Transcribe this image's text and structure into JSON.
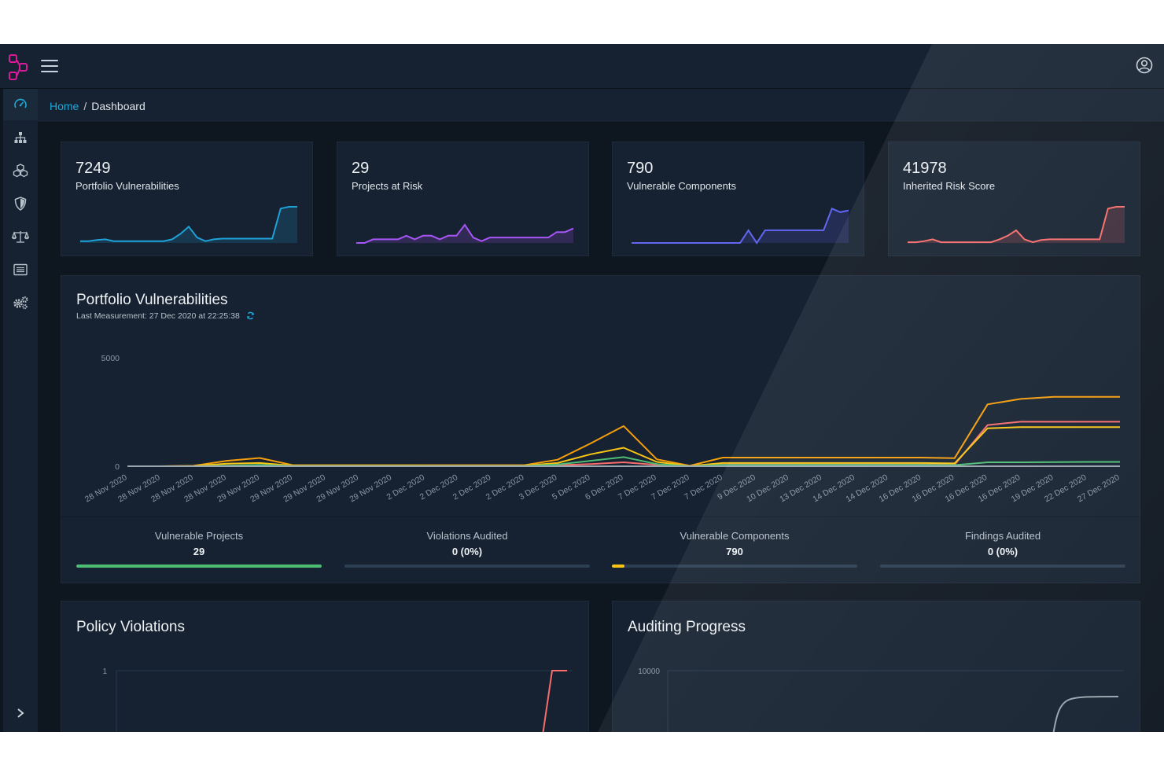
{
  "colors": {
    "accent": "#20a8d8",
    "logo": "#d81b9b",
    "vulnerable_projects": "#4dbd74",
    "vulnerable_components": "#f9c515",
    "portfolio_spark": "#1ea1d7",
    "projects_spark": "#a855f7",
    "components_spark": "#6366f1",
    "risk_spark": "#f86c6b"
  },
  "topbar": {
    "menu_icon": "hamburger-icon",
    "profile_icon": "user-circle-icon"
  },
  "breadcrumb": {
    "home": "Home",
    "separator": "/",
    "current": "Dashboard"
  },
  "sidebar": {
    "items": [
      {
        "name": "dashboard",
        "icon": "speedometer-icon"
      },
      {
        "name": "projects",
        "icon": "sitemap-icon"
      },
      {
        "name": "components",
        "icon": "cubes-icon"
      },
      {
        "name": "vulnerabilities",
        "icon": "shield-icon"
      },
      {
        "name": "policy",
        "icon": "balance-scale-icon"
      },
      {
        "name": "licenses",
        "icon": "list-icon"
      },
      {
        "name": "administration",
        "icon": "cogs-icon"
      }
    ],
    "toggle_icon": "chevron-right-icon"
  },
  "stats": [
    {
      "value": "7249",
      "label": "Portfolio Vulnerabilities",
      "color": "#1ea1d7",
      "trend": [
        0.05,
        0.05,
        0.08,
        0.1,
        0.05,
        0.05,
        0.05,
        0.05,
        0.05,
        0.05,
        0.05,
        0.1,
        0.25,
        0.45,
        0.15,
        0.05,
        0.1,
        0.12,
        0.12,
        0.12,
        0.12,
        0.12,
        0.12,
        0.12,
        0.95,
        1,
        1
      ]
    },
    {
      "value": "29",
      "label": "Projects at Risk",
      "color": "#a855f7",
      "trend": [
        0,
        0,
        0.1,
        0.1,
        0.1,
        0.1,
        0.2,
        0.1,
        0.2,
        0.2,
        0.1,
        0.2,
        0.2,
        0.5,
        0.15,
        0.05,
        0.15,
        0.15,
        0.15,
        0.15,
        0.15,
        0.15,
        0.15,
        0.15,
        0.3,
        0.3,
        0.4
      ]
    },
    {
      "value": "790",
      "label": "Vulnerable Components",
      "color": "#6366f1",
      "trend": [
        0,
        0,
        0,
        0,
        0,
        0,
        0,
        0,
        0,
        0,
        0,
        0,
        0,
        0,
        0.35,
        0,
        0.35,
        0.35,
        0.35,
        0.35,
        0.35,
        0.35,
        0.35,
        0.35,
        0.95,
        0.85,
        0.9
      ]
    },
    {
      "value": "41978",
      "label": "Inherited Risk Score",
      "color": "#f86c6b",
      "trend": [
        0.02,
        0.02,
        0.05,
        0.1,
        0.02,
        0.02,
        0.02,
        0.02,
        0.02,
        0.02,
        0.02,
        0.1,
        0.2,
        0.35,
        0.1,
        0.02,
        0.08,
        0.1,
        0.1,
        0.1,
        0.1,
        0.1,
        0.1,
        0.1,
        0.95,
        1,
        1
      ]
    }
  ],
  "portfolio": {
    "title": "Portfolio Vulnerabilities",
    "last_measurement": "Last Measurement: 27 Dec 2020 at 22:25:38",
    "refresh_icon": "refresh-icon"
  },
  "chart_data": {
    "type": "line",
    "x": [
      "28 Nov 2020",
      "28 Nov 2020",
      "28 Nov 2020",
      "28 Nov 2020",
      "29 Nov 2020",
      "29 Nov 2020",
      "29 Nov 2020",
      "29 Nov 2020",
      "29 Nov 2020",
      "2 Dec 2020",
      "2 Dec 2020",
      "2 Dec 2020",
      "2 Dec 2020",
      "3 Dec 2020",
      "5 Dec 2020",
      "6 Dec 2020",
      "7 Dec 2020",
      "7 Dec 2020",
      "7 Dec 2020",
      "9 Dec 2020",
      "10 Dec 2020",
      "13 Dec 2020",
      "14 Dec 2020",
      "14 Dec 2020",
      "16 Dec 2020",
      "16 Dec 2020",
      "16 Dec 2020",
      "16 Dec 2020",
      "19 Dec 2020",
      "22 Dec 2020",
      "27 Dec 2020"
    ],
    "ylim": [
      0,
      5000
    ],
    "yticks": [
      "0",
      "5000"
    ],
    "series": [
      {
        "color": "#f59e0b",
        "values": [
          0,
          0,
          20,
          250,
          380,
          50,
          50,
          50,
          50,
          50,
          50,
          50,
          50,
          300,
          1050,
          1850,
          320,
          20,
          400,
          400,
          400,
          400,
          400,
          400,
          400,
          370,
          2850,
          3100,
          3200,
          3200,
          3200
        ]
      },
      {
        "color": "#f86c6b",
        "values": [
          0,
          0,
          0,
          20,
          40,
          10,
          10,
          10,
          10,
          20,
          20,
          20,
          20,
          50,
          100,
          180,
          60,
          10,
          80,
          80,
          80,
          80,
          80,
          80,
          80,
          70,
          1900,
          2050,
          2050,
          2050,
          2050
        ]
      },
      {
        "color": "#f9c515",
        "values": [
          0,
          0,
          10,
          120,
          150,
          30,
          30,
          30,
          30,
          30,
          30,
          30,
          30,
          150,
          550,
          850,
          200,
          10,
          150,
          150,
          150,
          150,
          150,
          150,
          150,
          130,
          1750,
          1800,
          1800,
          1800,
          1800
        ]
      },
      {
        "color": "#4dbd74",
        "values": [
          0,
          0,
          0,
          30,
          60,
          10,
          10,
          10,
          10,
          10,
          10,
          10,
          10,
          80,
          250,
          420,
          100,
          0,
          60,
          60,
          60,
          60,
          60,
          60,
          60,
          50,
          180,
          180,
          190,
          200,
          200
        ]
      },
      {
        "color": "#9aa4ae",
        "values": [
          0,
          0,
          0,
          0,
          0,
          0,
          0,
          0,
          0,
          0,
          0,
          0,
          0,
          0,
          0,
          0,
          0,
          0,
          0,
          0,
          0,
          0,
          0,
          0,
          0,
          0,
          0,
          0,
          0,
          0,
          0
        ]
      }
    ]
  },
  "metrics": [
    {
      "label": "Vulnerable Projects",
      "value": "29",
      "progress": 1.0,
      "color": "#4dbd74"
    },
    {
      "label": "Violations Audited",
      "value": "0 (0%)",
      "progress": 0.0,
      "color": "#20a8d8"
    },
    {
      "label": "Vulnerable Components",
      "value": "790",
      "progress": 0.05,
      "color": "#f9c515"
    },
    {
      "label": "Findings Audited",
      "value": "0 (0%)",
      "progress": 0.0,
      "color": "#20a8d8"
    }
  ],
  "policy_violations": {
    "title": "Policy Violations",
    "ytick": "1"
  },
  "auditing_progress": {
    "title": "Auditing Progress",
    "ytick": "10000"
  }
}
